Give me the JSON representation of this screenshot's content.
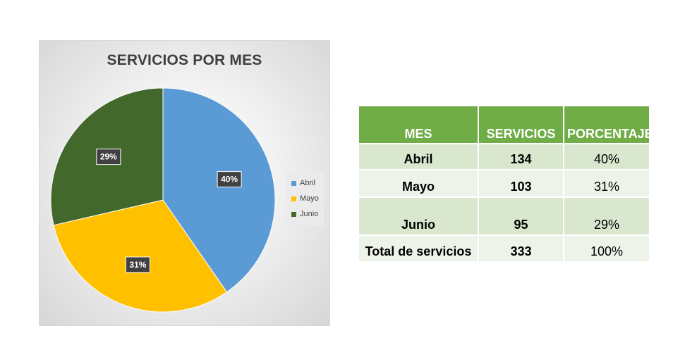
{
  "chart_data": {
    "type": "pie",
    "title": "SERVICIOS POR MES",
    "categories": [
      "Abril",
      "Mayo",
      "Junio"
    ],
    "values": [
      134,
      103,
      95
    ],
    "data_labels": [
      "40%",
      "31%",
      "29%"
    ],
    "colors": [
      "#5b9bd5",
      "#ffc000",
      "#43682b"
    ],
    "legend_position": "right"
  },
  "table": {
    "headers": [
      "MES",
      "SERVICIOS",
      "PORCENTAJE"
    ],
    "rows": [
      {
        "mes": "Abril",
        "servicios": "134",
        "porcentaje": "40%"
      },
      {
        "mes": "Mayo",
        "servicios": "103",
        "porcentaje": "31%"
      },
      {
        "mes": "Junio",
        "servicios": "95",
        "porcentaje": "29%"
      },
      {
        "mes": "Total de servicios",
        "servicios": "333",
        "porcentaje": "100%"
      }
    ],
    "header_color": "#70ad47"
  }
}
